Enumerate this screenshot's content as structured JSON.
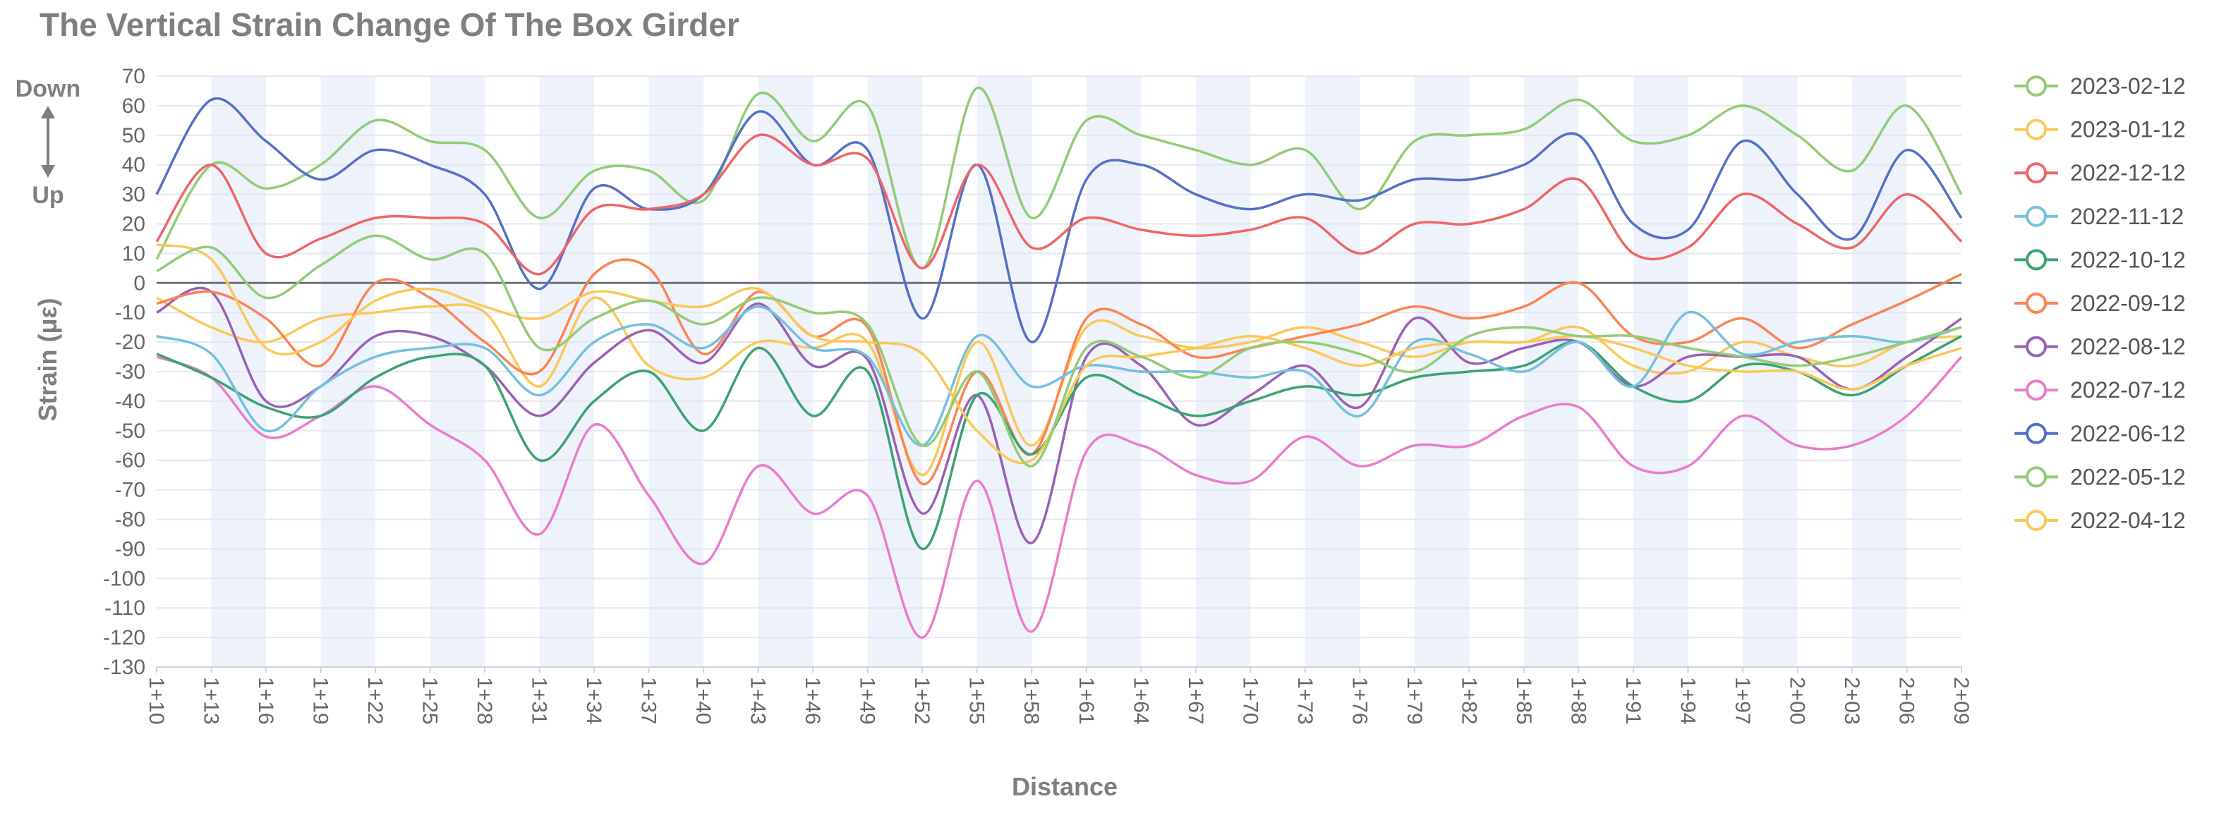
{
  "chart_data": {
    "type": "line",
    "title": "The Vertical Strain Change Of The Box Girder",
    "xlabel": "Distance",
    "ylabel": "Strain (με)",
    "direction_labels": {
      "down": "Down",
      "up": "Up"
    },
    "ylim": [
      -130,
      70
    ],
    "yticks": [
      70,
      60,
      50,
      40,
      30,
      20,
      10,
      0,
      -10,
      -20,
      -30,
      -40,
      -50,
      -60,
      -70,
      -80,
      -90,
      -100,
      -110,
      -120,
      -130
    ],
    "categories": [
      "1+10",
      "1+13",
      "1+16",
      "1+19",
      "1+22",
      "1+25",
      "1+28",
      "1+31",
      "1+34",
      "1+37",
      "1+40",
      "1+43",
      "1+46",
      "1+49",
      "1+52",
      "1+55",
      "1+58",
      "1+61",
      "1+64",
      "1+67",
      "1+70",
      "1+73",
      "1+76",
      "1+79",
      "1+82",
      "1+85",
      "1+88",
      "1+91",
      "1+94",
      "1+97",
      "2+00",
      "2+03",
      "2+06",
      "2+09"
    ],
    "grid": true,
    "legend_position": "right",
    "series": [
      {
        "name": "2023-02-12",
        "color": "#91cc75",
        "values": [
          4,
          12,
          -5,
          6,
          16,
          8,
          10,
          -22,
          -12,
          -6,
          -14,
          -5,
          -10,
          -14,
          -55,
          -30,
          -62,
          -22,
          -25,
          -32,
          -22,
          -20,
          -24,
          -30,
          -18,
          -15,
          -18,
          -18,
          -22,
          -25,
          -28,
          -25,
          -20,
          -15
        ]
      },
      {
        "name": "2023-01-12",
        "color": "#fac858",
        "values": [
          13,
          8,
          -22,
          -20,
          -6,
          -2,
          -8,
          -12,
          -3,
          -6,
          -8,
          -2,
          -18,
          -20,
          -24,
          -50,
          -60,
          -28,
          -25,
          -22,
          -18,
          -22,
          -28,
          -22,
          -20,
          -20,
          -18,
          -22,
          -28,
          -30,
          -30,
          -36,
          -28,
          -22
        ]
      },
      {
        "name": "2022-12-12",
        "color": "#ee6666",
        "values": [
          14,
          40,
          10,
          15,
          22,
          22,
          20,
          3,
          25,
          25,
          30,
          50,
          40,
          42,
          5,
          40,
          12,
          22,
          18,
          16,
          18,
          22,
          10,
          20,
          20,
          25,
          35,
          10,
          12,
          30,
          20,
          12,
          30,
          14
        ]
      },
      {
        "name": "2022-11-12",
        "color": "#73c0de",
        "values": [
          -18,
          -24,
          -50,
          -35,
          -25,
          -22,
          -22,
          -38,
          -20,
          -14,
          -22,
          -8,
          -22,
          -25,
          -55,
          -18,
          -35,
          -28,
          -30,
          -30,
          -32,
          -30,
          -45,
          -20,
          -24,
          -30,
          -20,
          -35,
          -10,
          -24,
          -20,
          -18,
          -20,
          -15
        ]
      },
      {
        "name": "2022-10-12",
        "color": "#3ba272",
        "values": [
          -24,
          -32,
          -42,
          -45,
          -32,
          -25,
          -28,
          -60,
          -40,
          -30,
          -50,
          -22,
          -45,
          -30,
          -90,
          -38,
          -58,
          -32,
          -38,
          -45,
          -40,
          -35,
          -38,
          -32,
          -30,
          -28,
          -20,
          -35,
          -40,
          -28,
          -30,
          -38,
          -28,
          -18
        ]
      },
      {
        "name": "2022-09-12",
        "color": "#fc8452",
        "values": [
          -7,
          -3,
          -12,
          -28,
          0,
          -5,
          -20,
          -30,
          3,
          5,
          -24,
          -3,
          -18,
          -15,
          -68,
          -30,
          -58,
          -12,
          -14,
          -25,
          -22,
          -18,
          -14,
          -8,
          -12,
          -8,
          0,
          -18,
          -20,
          -12,
          -22,
          -14,
          -6,
          3
        ]
      },
      {
        "name": "2022-08-12",
        "color": "#9a60b4",
        "values": [
          -10,
          -3,
          -40,
          -35,
          -18,
          -18,
          -28,
          -45,
          -27,
          -16,
          -27,
          -7,
          -28,
          -26,
          -78,
          -38,
          -88,
          -25,
          -28,
          -48,
          -38,
          -28,
          -42,
          -12,
          -27,
          -22,
          -20,
          -35,
          -25,
          -25,
          -25,
          -36,
          -25,
          -12
        ]
      },
      {
        "name": "2022-07-12",
        "color": "#ea7ccc",
        "values": [
          -25,
          -32,
          -52,
          -45,
          -35,
          -48,
          -60,
          -85,
          -48,
          -72,
          -95,
          -62,
          -78,
          -72,
          -120,
          -67,
          -118,
          -57,
          -55,
          -65,
          -67,
          -52,
          -62,
          -55,
          -55,
          -45,
          -42,
          -62,
          -62,
          -45,
          -55,
          -55,
          -45,
          -25
        ]
      },
      {
        "name": "2022-06-12",
        "color": "#5470c6",
        "values": [
          30,
          62,
          48,
          35,
          45,
          40,
          30,
          -2,
          32,
          25,
          30,
          58,
          40,
          45,
          -12,
          40,
          -20,
          35,
          40,
          30,
          25,
          30,
          28,
          35,
          35,
          40,
          50,
          20,
          18,
          48,
          30,
          15,
          45,
          22
        ]
      },
      {
        "name": "2022-05-12",
        "color": "#91cc75",
        "values": [
          8,
          40,
          32,
          40,
          55,
          48,
          45,
          22,
          38,
          38,
          28,
          64,
          48,
          60,
          5,
          66,
          22,
          55,
          50,
          45,
          40,
          45,
          25,
          48,
          50,
          52,
          62,
          48,
          50,
          60,
          50,
          38,
          60,
          30
        ]
      },
      {
        "name": "2022-04-12",
        "color": "#fac858",
        "values": [
          -5,
          -15,
          -20,
          -12,
          -10,
          -8,
          -10,
          -35,
          -5,
          -28,
          -32,
          -20,
          -22,
          -20,
          -65,
          -20,
          -55,
          -15,
          -18,
          -22,
          -20,
          -15,
          -20,
          -25,
          -20,
          -20,
          -15,
          -28,
          -30,
          -20,
          -25,
          -28,
          -20,
          -18
        ]
      }
    ]
  }
}
